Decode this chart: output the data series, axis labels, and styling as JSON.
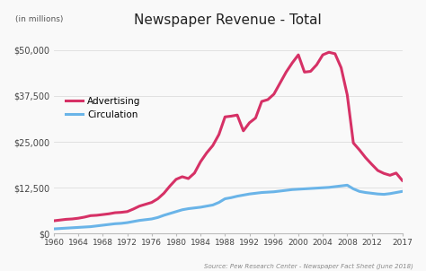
{
  "title": "Newspaper Revenue - Total",
  "ylabel_note": "(in millions)",
  "source": "Source: Pew Research Center - Newspaper Fact Sheet (June 2018)",
  "background_color": "#f9f9f9",
  "advertising_color": "#d63166",
  "circulation_color": "#6ab4e8",
  "years": [
    1960,
    1961,
    1962,
    1963,
    1964,
    1965,
    1966,
    1967,
    1968,
    1969,
    1970,
    1971,
    1972,
    1973,
    1974,
    1975,
    1976,
    1977,
    1978,
    1979,
    1980,
    1981,
    1982,
    1983,
    1984,
    1985,
    1986,
    1987,
    1988,
    1989,
    1990,
    1991,
    1992,
    1993,
    1994,
    1995,
    1996,
    1997,
    1998,
    1999,
    2000,
    2001,
    2002,
    2003,
    2004,
    2005,
    2006,
    2007,
    2008,
    2009,
    2010,
    2011,
    2012,
    2013,
    2014,
    2015,
    2016,
    2017
  ],
  "advertising": [
    3500,
    3700,
    3900,
    4000,
    4200,
    4500,
    4900,
    5000,
    5200,
    5400,
    5700,
    5800,
    6000,
    6700,
    7500,
    8000,
    8500,
    9500,
    11000,
    13000,
    14800,
    15500,
    15000,
    16500,
    19600,
    22000,
    24000,
    27000,
    31800,
    32000,
    32300,
    28000,
    30200,
    31500,
    36000,
    36500,
    38000,
    41000,
    44000,
    46500,
    48700,
    44000,
    44200,
    46000,
    48700,
    49400,
    49000,
    45200,
    37800,
    24700,
    22800,
    20700,
    18900,
    17200,
    16400,
    15900,
    16500,
    14500
  ],
  "circulation": [
    1300,
    1400,
    1500,
    1600,
    1700,
    1800,
    1900,
    2100,
    2300,
    2500,
    2700,
    2800,
    3000,
    3300,
    3600,
    3800,
    4000,
    4400,
    5000,
    5500,
    6000,
    6500,
    6800,
    7000,
    7200,
    7500,
    7800,
    8500,
    9500,
    9800,
    10200,
    10500,
    10800,
    11000,
    11200,
    11300,
    11400,
    11600,
    11800,
    12000,
    12100,
    12200,
    12300,
    12400,
    12500,
    12600,
    12800,
    13000,
    13200,
    12200,
    11500,
    11200,
    11000,
    10800,
    10700,
    10900,
    11200,
    11500
  ],
  "ylim": [
    0,
    55000
  ],
  "yticks": [
    0,
    12500,
    25000,
    37500,
    50000
  ],
  "ytick_labels": [
    "$0",
    "$12,500",
    "$25,000",
    "$37,500",
    "$50,000"
  ],
  "xlim_min": 1960,
  "xlim_max": 2017,
  "xtick_years": [
    1960,
    1964,
    1968,
    1972,
    1976,
    1980,
    1984,
    1988,
    1992,
    1996,
    2000,
    2004,
    2008,
    2012,
    2017
  ],
  "legend_advertising": "Advertising",
  "legend_circulation": "Circulation",
  "adv_linewidth": 2.2,
  "circ_linewidth": 2.2
}
